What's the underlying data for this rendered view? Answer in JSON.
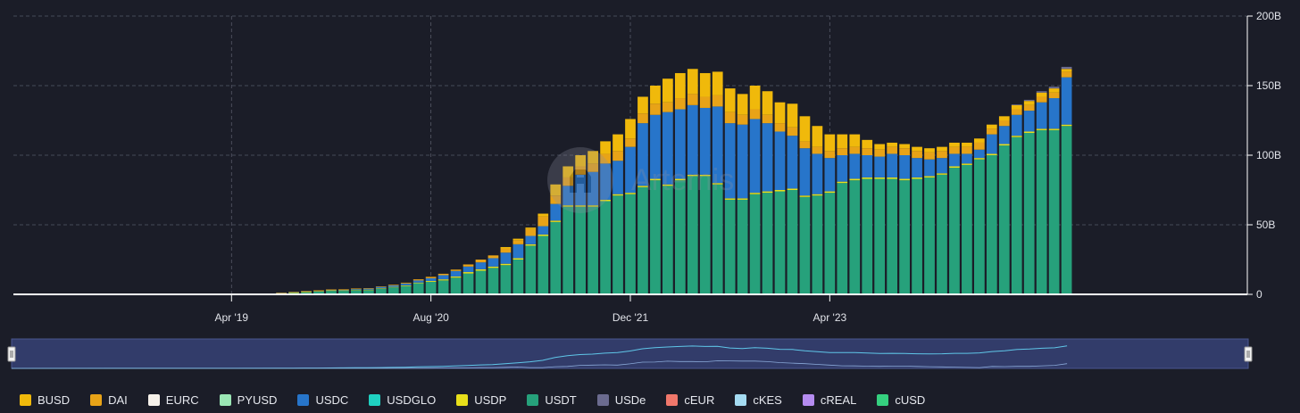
{
  "colors": {
    "background": "#1b1d28",
    "grid": "#565a68",
    "axis": "#ffffff",
    "navigator_fill": "#323c6a",
    "navigator_line": "#5fc6e8"
  },
  "watermark": {
    "text": "Artemis",
    "icon": "artemis-logo-icon"
  },
  "legend": [
    {
      "name": "BUSD",
      "color": "#f0b90b"
    },
    {
      "name": "DAI",
      "color": "#e8a317"
    },
    {
      "name": "EURC",
      "color": "#f6f1ea"
    },
    {
      "name": "PYUSD",
      "color": "#9ae6b4"
    },
    {
      "name": "USDC",
      "color": "#2775ca"
    },
    {
      "name": "USDGLO",
      "color": "#1fd1c1"
    },
    {
      "name": "USDP",
      "color": "#e8df1a"
    },
    {
      "name": "USDT",
      "color": "#26a17b"
    },
    {
      "name": "USDe",
      "color": "#6b6b8f"
    },
    {
      "name": "cEUR",
      "color": "#f0776b"
    },
    {
      "name": "cKES",
      "color": "#a4dbf2"
    },
    {
      "name": "cREAL",
      "color": "#b58cf0"
    },
    {
      "name": "cUSD",
      "color": "#35d07f"
    }
  ],
  "chart_data": {
    "type": "bar",
    "stacked": true,
    "title": "",
    "xlabel": "",
    "ylabel": "",
    "ylim": [
      0,
      200
    ],
    "y_unit": "B",
    "y_ticks": [
      {
        "value": 0,
        "label": "0"
      },
      {
        "value": 50,
        "label": "50B"
      },
      {
        "value": 100,
        "label": "100B"
      },
      {
        "value": 150,
        "label": "150B"
      },
      {
        "value": 200,
        "label": "200B"
      }
    ],
    "x_ticks": [
      {
        "index": -4,
        "label": "Apr '19"
      },
      {
        "index": 12,
        "label": "Aug '20"
      },
      {
        "index": 28,
        "label": "Dec '21"
      },
      {
        "index": 44,
        "label": "Apr '23"
      }
    ],
    "x_index_range": [
      -21,
      77
    ],
    "series_order": [
      "USDT",
      "USDP",
      "EURC",
      "USDC",
      "DAI",
      "BUSD",
      "USDe"
    ],
    "series": [
      {
        "name": "USDT",
        "values": [
          0.5,
          1,
          1.5,
          2,
          2.5,
          2.5,
          3,
          3,
          4,
          5,
          6,
          8,
          9,
          10,
          12,
          15,
          17,
          19,
          21,
          25,
          35,
          42,
          52,
          63,
          63,
          63,
          67,
          71,
          72,
          77,
          82,
          78,
          82,
          85,
          85,
          79,
          68,
          68,
          72,
          73,
          74,
          75,
          70,
          71,
          73,
          80,
          82,
          83,
          83,
          83,
          82,
          83,
          84,
          86,
          91,
          93,
          97,
          100,
          107,
          113,
          116,
          118,
          118,
          121
        ]
      },
      {
        "name": "USDP",
        "values": [
          0.4,
          0.4,
          0.4,
          0.4,
          0.4,
          0.4,
          0.4,
          0.4,
          0.4,
          0.4,
          0.5,
          0.5,
          0.6,
          0.8,
          0.8,
          1,
          1,
          1,
          1,
          1,
          1,
          1,
          1,
          1,
          1,
          1,
          1,
          1,
          1,
          1,
          1,
          1,
          1,
          1,
          1,
          1,
          1,
          1,
          1,
          1,
          1,
          1,
          1,
          1,
          1,
          1,
          1,
          1,
          1,
          1,
          1,
          1,
          1,
          1,
          1,
          1,
          1,
          1,
          1,
          1,
          1,
          1,
          1,
          1
        ]
      },
      {
        "name": "EURC",
        "values": [
          0,
          0,
          0,
          0,
          0,
          0,
          0,
          0,
          0,
          0,
          0,
          0,
          0,
          0,
          0,
          0,
          0,
          0,
          0,
          0,
          0,
          0,
          0,
          0,
          0,
          0,
          0,
          0,
          0,
          0,
          0,
          0,
          0,
          0,
          0,
          0,
          0,
          0,
          0,
          0,
          0,
          0,
          0,
          0,
          0,
          0,
          0,
          0,
          0,
          0,
          0,
          0,
          0,
          0,
          0,
          0,
          0,
          0,
          0,
          0,
          0,
          0,
          0,
          0
        ]
      },
      {
        "name": "USDC",
        "values": [
          0.2,
          0.3,
          0.4,
          0.4,
          0.5,
          0.6,
          0.7,
          0.8,
          1,
          1,
          1.3,
          1.5,
          2,
          3,
          4,
          4,
          5,
          6,
          8,
          10,
          6,
          6,
          12,
          14,
          22,
          24,
          26,
          24,
          33,
          45,
          46,
          52,
          50,
          50,
          48,
          55,
          54,
          53,
          53,
          49,
          42,
          38,
          34,
          29,
          24,
          19,
          18,
          16,
          15,
          17,
          17,
          14,
          12,
          11,
          9,
          7,
          6,
          14,
          13,
          15,
          15,
          19,
          22,
          34
        ]
      },
      {
        "name": "DAI",
        "values": [
          0.1,
          0.1,
          0.1,
          0.1,
          0.1,
          0.1,
          0.1,
          0.2,
          0.3,
          0.5,
          0.6,
          0.8,
          1,
          1,
          1,
          1.5,
          2,
          2,
          3,
          3,
          5,
          7,
          6,
          6,
          6,
          6,
          7,
          7,
          6,
          7,
          8,
          7,
          8,
          8,
          8,
          8,
          8,
          7,
          7,
          6,
          6,
          6,
          5,
          5,
          5,
          5,
          5,
          5,
          5,
          5,
          5,
          5,
          5,
          5,
          5,
          5,
          5,
          4,
          4,
          4,
          4,
          4,
          4,
          4
        ]
      },
      {
        "name": "BUSD",
        "values": [
          0,
          0,
          0,
          0,
          0,
          0,
          0,
          0,
          0,
          0,
          0,
          0,
          0,
          0,
          0,
          0,
          0,
          0,
          1,
          1,
          1,
          2,
          8,
          8,
          8,
          9,
          9,
          12,
          14,
          12,
          13,
          17,
          18,
          18,
          17,
          17,
          17,
          15,
          17,
          17,
          15,
          17,
          18,
          15,
          12,
          10,
          9,
          6,
          4,
          3,
          3,
          3,
          3,
          3,
          3,
          3,
          3,
          3,
          3,
          3,
          3,
          3,
          3,
          2
        ]
      },
      {
        "name": "USDe",
        "values": [
          0,
          0,
          0,
          0,
          0,
          0,
          0,
          0,
          0,
          0,
          0,
          0,
          0,
          0,
          0,
          0,
          0,
          0,
          0,
          0,
          0,
          0,
          0,
          0,
          0,
          0,
          0,
          0,
          0,
          0,
          0,
          0,
          0,
          0,
          0,
          0,
          0,
          0,
          0,
          0,
          0,
          0,
          0,
          0,
          0,
          0,
          0,
          0,
          0,
          0,
          0,
          0,
          0,
          0,
          0,
          0,
          0,
          0,
          0,
          0.5,
          0.8,
          1,
          1.2,
          1.5
        ]
      }
    ],
    "navigator": {
      "handles": [
        "left",
        "right"
      ],
      "range": "full"
    }
  }
}
